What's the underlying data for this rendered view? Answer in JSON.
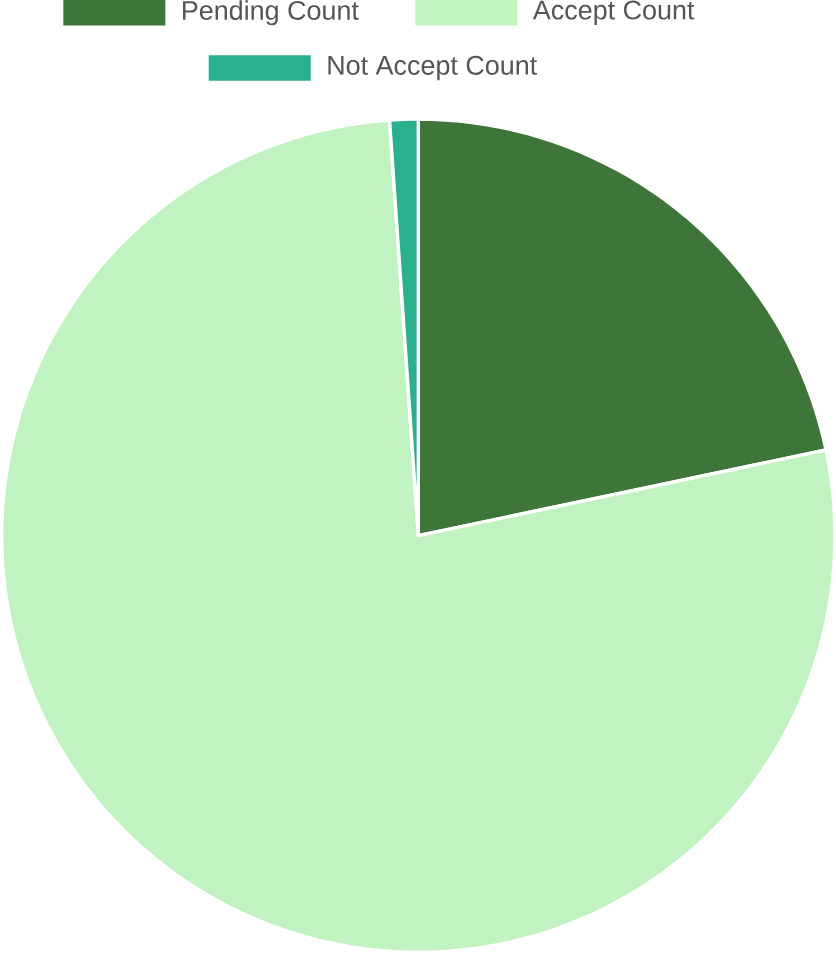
{
  "chart_data": {
    "type": "pie",
    "categories": [
      "Pending Count",
      "Accept Count",
      "Not Accept Count"
    ],
    "values": [
      21.7,
      77.2,
      1.1
    ],
    "colors": [
      "#3e7538",
      "#c1f2c1",
      "#2bb08e"
    ],
    "legend": "top"
  }
}
